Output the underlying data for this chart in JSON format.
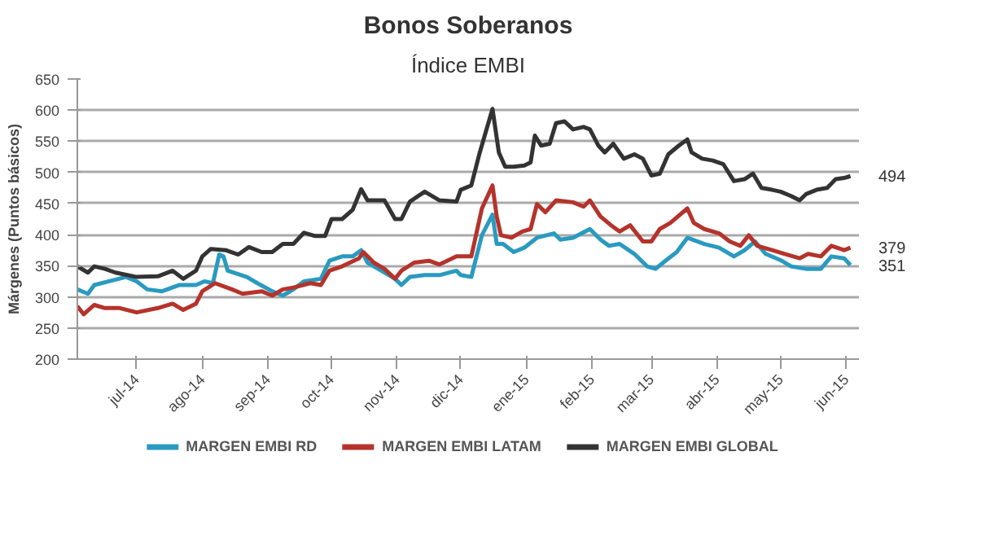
{
  "chart_data": {
    "type": "line",
    "title": "Bonos Soberanos",
    "subtitle": "Índice EMBI",
    "ylabel": "Márgenes (Puntos básicos)",
    "xlim": [
      "2014-06-03",
      "2015-06-07"
    ],
    "ylim": [
      200,
      650
    ],
    "yticks": [
      200,
      250,
      300,
      350,
      400,
      450,
      500,
      550,
      600,
      650
    ],
    "xticks": [
      {
        "value": "2014-07-01",
        "label": "jul-14"
      },
      {
        "value": "2014-08-01",
        "label": "ago-14"
      },
      {
        "value": "2014-09-01",
        "label": "sep-14"
      },
      {
        "value": "2014-10-01",
        "label": "oct-14"
      },
      {
        "value": "2014-11-01",
        "label": "nov-14"
      },
      {
        "value": "2014-12-01",
        "label": "dic-14"
      },
      {
        "value": "2015-01-01",
        "label": "ene-15"
      },
      {
        "value": "2015-02-01",
        "label": "feb-15"
      },
      {
        "value": "2015-03-01",
        "label": "mar-15"
      },
      {
        "value": "2015-04-01",
        "label": "abr-15"
      },
      {
        "value": "2015-05-01",
        "label": "may-15"
      },
      {
        "value": "2015-06-01",
        "label": "jun-15"
      }
    ],
    "grid": "y",
    "legend": "bottom",
    "marker": "none",
    "line_style": "solid",
    "series": [
      {
        "name": "MARGEN EMBI RD",
        "color": "#2a9ac0",
        "x": [
          "2014-06-03",
          "2014-06-08",
          "2014-06-11",
          "2014-06-18",
          "2014-06-26",
          "2014-07-01",
          "2014-07-06",
          "2014-07-13",
          "2014-07-21",
          "2014-07-29",
          "2014-08-02",
          "2014-08-06",
          "2014-08-09",
          "2014-08-11",
          "2014-08-13",
          "2014-08-22",
          "2014-08-27",
          "2014-09-03",
          "2014-09-08",
          "2014-09-13",
          "2014-09-18",
          "2014-09-26",
          "2014-09-30",
          "2014-10-06",
          "2014-10-11",
          "2014-10-15",
          "2014-10-18",
          "2014-10-23",
          "2014-10-31",
          "2014-11-03",
          "2014-11-07",
          "2014-11-14",
          "2014-11-21",
          "2014-11-29",
          "2014-12-01",
          "2014-12-06",
          "2014-12-11",
          "2014-12-16",
          "2014-12-18",
          "2014-12-21",
          "2014-12-26",
          "2014-12-31",
          "2015-01-06",
          "2015-01-14",
          "2015-01-17",
          "2015-01-23",
          "2015-01-31",
          "2015-02-05",
          "2015-02-09",
          "2015-02-14",
          "2015-02-21",
          "2015-02-27",
          "2015-03-03",
          "2015-03-08",
          "2015-03-13",
          "2015-03-18",
          "2015-03-26",
          "2015-04-02",
          "2015-04-09",
          "2015-04-14",
          "2015-04-19",
          "2015-04-24",
          "2015-05-01",
          "2015-05-06",
          "2015-05-13",
          "2015-05-20",
          "2015-05-25",
          "2015-05-31",
          "2015-06-03"
        ],
        "values": [
          312,
          305,
          319,
          325,
          332,
          325,
          312,
          309,
          319,
          319,
          325,
          322,
          368,
          365,
          342,
          332,
          322,
          309,
          302,
          312,
          325,
          329,
          358,
          365,
          365,
          375,
          355,
          345,
          329,
          319,
          332,
          335,
          335,
          342,
          335,
          332,
          399,
          432,
          385,
          385,
          372,
          379,
          395,
          402,
          392,
          395,
          409,
          392,
          382,
          385,
          369,
          349,
          345,
          359,
          372,
          395,
          385,
          379,
          365,
          375,
          389,
          369,
          359,
          349,
          345,
          345,
          365,
          362,
          351
        ]
      },
      {
        "name": "MARGEN EMBI LATAM",
        "color": "#b5332b",
        "x": [
          "2014-06-03",
          "2014-06-06",
          "2014-06-11",
          "2014-06-16",
          "2014-06-23",
          "2014-07-01",
          "2014-07-11",
          "2014-07-18",
          "2014-07-23",
          "2014-07-29",
          "2014-08-01",
          "2014-08-07",
          "2014-08-15",
          "2014-08-20",
          "2014-08-29",
          "2014-09-03",
          "2014-09-08",
          "2014-09-13",
          "2014-09-21",
          "2014-09-26",
          "2014-09-30",
          "2014-10-06",
          "2014-10-14",
          "2014-10-16",
          "2014-10-21",
          "2014-10-26",
          "2014-10-31",
          "2014-11-03",
          "2014-11-09",
          "2014-11-16",
          "2014-11-21",
          "2014-11-29",
          "2014-12-01",
          "2014-12-06",
          "2014-12-11",
          "2014-12-16",
          "2014-12-18",
          "2014-12-20",
          "2014-12-25",
          "2014-12-30",
          "2015-01-03",
          "2015-01-06",
          "2015-01-10",
          "2015-01-15",
          "2015-01-23",
          "2015-01-28",
          "2015-01-31",
          "2015-02-05",
          "2015-02-10",
          "2015-02-14",
          "2015-02-19",
          "2015-02-25",
          "2015-03-01",
          "2015-03-05",
          "2015-03-10",
          "2015-03-18",
          "2015-03-21",
          "2015-03-26",
          "2015-04-02",
          "2015-04-07",
          "2015-04-12",
          "2015-04-16",
          "2015-04-20",
          "2015-04-27",
          "2015-05-03",
          "2015-05-10",
          "2015-05-14",
          "2015-05-20",
          "2015-05-25",
          "2015-05-31",
          "2015-06-03"
        ],
        "values": [
          285,
          272,
          287,
          282,
          282,
          275,
          282,
          289,
          279,
          289,
          309,
          322,
          312,
          305,
          309,
          302,
          312,
          315,
          322,
          319,
          342,
          349,
          362,
          372,
          355,
          345,
          329,
          342,
          355,
          358,
          352,
          365,
          365,
          365,
          442,
          479,
          429,
          399,
          395,
          405,
          409,
          449,
          436,
          455,
          452,
          445,
          455,
          429,
          415,
          405,
          415,
          389,
          389,
          409,
          419,
          442,
          419,
          409,
          402,
          389,
          382,
          399,
          382,
          375,
          369,
          362,
          369,
          365,
          382,
          375,
          379
        ]
      },
      {
        "name": "MARGEN EMBI GLOBAL",
        "color": "#333333",
        "x": [
          "2014-06-03",
          "2014-06-08",
          "2014-06-11",
          "2014-06-16",
          "2014-06-21",
          "2014-07-01",
          "2014-07-11",
          "2014-07-18",
          "2014-07-23",
          "2014-07-29",
          "2014-08-01",
          "2014-08-05",
          "2014-08-12",
          "2014-08-18",
          "2014-08-23",
          "2014-08-29",
          "2014-09-03",
          "2014-09-08",
          "2014-09-13",
          "2014-09-18",
          "2014-09-23",
          "2014-09-28",
          "2014-10-01",
          "2014-10-06",
          "2014-10-11",
          "2014-10-15",
          "2014-10-18",
          "2014-10-26",
          "2014-10-31",
          "2014-11-03",
          "2014-11-07",
          "2014-11-14",
          "2014-11-21",
          "2014-11-29",
          "2014-12-01",
          "2014-12-06",
          "2014-12-10",
          "2014-12-16",
          "2014-12-19",
          "2014-12-22",
          "2014-12-26",
          "2014-12-31",
          "2015-01-03",
          "2015-01-05",
          "2015-01-08",
          "2015-01-12",
          "2015-01-15",
          "2015-01-19",
          "2015-01-23",
          "2015-01-28",
          "2015-01-31",
          "2015-02-04",
          "2015-02-07",
          "2015-02-11",
          "2015-02-16",
          "2015-02-21",
          "2015-02-25",
          "2015-03-01",
          "2015-03-05",
          "2015-03-09",
          "2015-03-14",
          "2015-03-18",
          "2015-03-20",
          "2015-03-25",
          "2015-03-30",
          "2015-04-04",
          "2015-04-09",
          "2015-04-14",
          "2015-04-18",
          "2015-04-22",
          "2015-04-27",
          "2015-05-01",
          "2015-05-06",
          "2015-05-10",
          "2015-05-13",
          "2015-05-18",
          "2015-05-23",
          "2015-05-27",
          "2015-05-31",
          "2015-06-03"
        ],
        "values": [
          349,
          339,
          349,
          345,
          339,
          332,
          333,
          342,
          329,
          342,
          365,
          377,
          375,
          368,
          380,
          372,
          372,
          385,
          385,
          403,
          398,
          398,
          425,
          425,
          440,
          473,
          455,
          455,
          425,
          425,
          453,
          469,
          455,
          453,
          472,
          479,
          532,
          602,
          532,
          509,
          509,
          511,
          516,
          559,
          543,
          546,
          579,
          582,
          569,
          573,
          569,
          543,
          532,
          546,
          522,
          529,
          522,
          495,
          498,
          529,
          543,
          553,
          532,
          522,
          519,
          513,
          486,
          489,
          498,
          475,
          472,
          469,
          462,
          455,
          465,
          472,
          475,
          489,
          491,
          494
        ]
      }
    ],
    "annotations": [
      {
        "text": "494",
        "x": "2015-06-03",
        "y": 494
      },
      {
        "text": "379",
        "x": "2015-06-03",
        "y": 379
      },
      {
        "text": "351",
        "x": "2015-06-03",
        "y": 351
      }
    ]
  }
}
